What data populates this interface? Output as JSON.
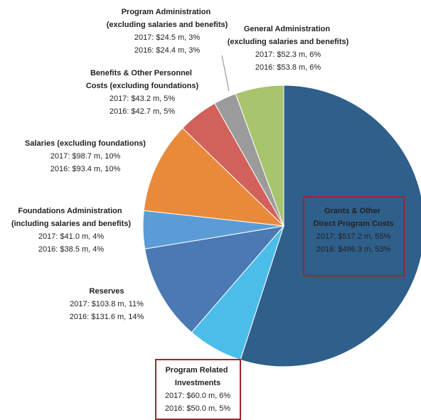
{
  "chart_data": {
    "type": "pie",
    "categories": [
      "Grants & Other Direct Program Costs",
      "Program Related Investments",
      "Reserves",
      "Foundations Administration (including salaries and benefits)",
      "Salaries (excluding foundations)",
      "Benefits & Other Personnel Costs (excluding foundations)",
      "Program Administration (excluding salaries and benefits)",
      "General Administration (excluding salaries and benefits)"
    ],
    "colors": [
      "#2f5f8b",
      "#4cbde9",
      "#4a79b4",
      "#5c9cd6",
      "#e98a3b",
      "#d1615a",
      "#9b9b9b",
      "#a8c46c"
    ],
    "series": [
      {
        "values": [
          517.2,
          60.0,
          103.8,
          41.0,
          98.7,
          43.2,
          24.5,
          52.3
        ],
        "value_labels": [
          "2017: $517.2 m, 55%",
          "2017: $60.0 m, 6%",
          "2017: $103.8 m, 11%",
          "2017: $41.0 m, 4%",
          "2017: $98.7 m, 10%",
          "2017: $43.2 m, 5%",
          "2017: $24.5 m, 3%",
          "2017: $52.3 m, 6%"
        ]
      },
      {
        "values": [
          496.3,
          50.0,
          131.6,
          38.5,
          93.4,
          42.7,
          24.4,
          53.8
        ],
        "value_labels": [
          "2016: $496.3 m, 53%",
          "2016: $50.0 m, 5%",
          "2016: $131.6 m, 14%",
          "2016: $38.5 m, 4%",
          "2016: $93.4 m, 10%",
          "2016: $42.7 m, 5%",
          "2016: $24.4 m, 3%",
          "2016: $53.8 m, 6%"
        ]
      }
    ]
  }
}
